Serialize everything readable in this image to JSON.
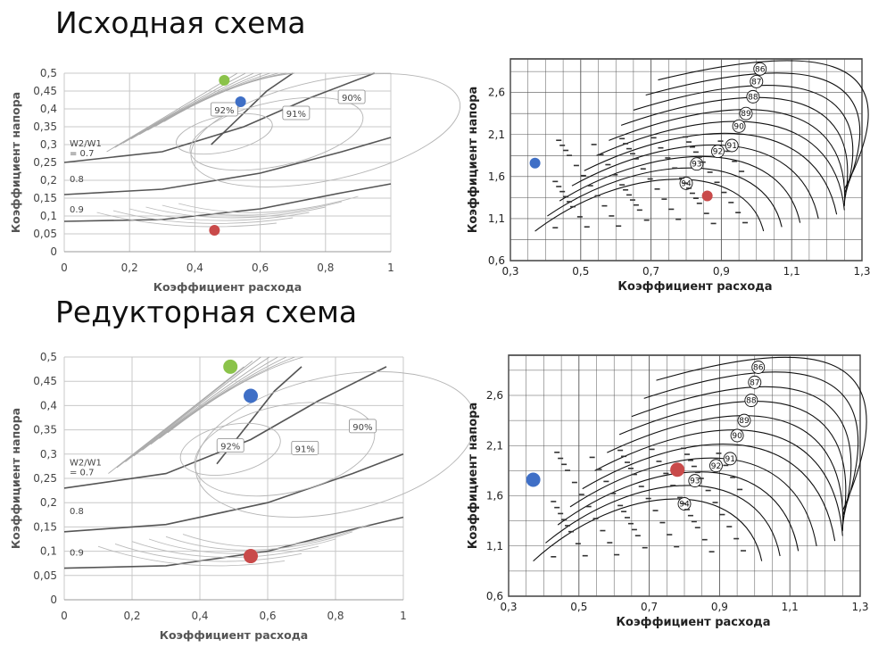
{
  "titles": {
    "top": "Исходная схема",
    "bottom": "Редукторная схема"
  },
  "colors": {
    "green_point": "#8bc34a",
    "blue_point": "#3f6fc6",
    "red_point": "#c94a4a"
  },
  "chart_data": [
    {
      "type": "scatter",
      "title": "",
      "xlabel": "Коэффициент расхода",
      "ylabel": "Коэффициент напора",
      "xlim": [
        0,
        1
      ],
      "ylim": [
        0,
        0.5
      ],
      "xticks": [
        "0",
        "0,2",
        "0,4",
        "0,6",
        "0,8",
        "1"
      ],
      "yticks": [
        "0",
        "0,05",
        "0,1",
        "0,15",
        "0,2",
        "0,25",
        "0,3",
        "0,35",
        "0,4",
        "0,45",
        "0,5"
      ],
      "grid": true,
      "annotations": [
        "92%",
        "91%",
        "90%",
        "W2/W1",
        "= 0.7",
        "0.8",
        "0.9"
      ],
      "efficiency_labels": [
        {
          "text": "92%",
          "x": 0.49,
          "y": 0.395
        },
        {
          "text": "91%",
          "x": 0.71,
          "y": 0.385
        },
        {
          "text": "90%",
          "x": 0.88,
          "y": 0.43
        }
      ],
      "points": [
        {
          "x": 0.49,
          "y": 0.48,
          "color": "#8bc34a"
        },
        {
          "x": 0.54,
          "y": 0.42,
          "color": "#3f6fc6"
        },
        {
          "x": 0.46,
          "y": 0.06,
          "color": "#c94a4a"
        }
      ]
    },
    {
      "type": "scatter",
      "title": "",
      "xlabel": "Коэффициент расхода",
      "ylabel": "Коэффициент напора",
      "xlim": [
        0.3,
        1.3
      ],
      "ylim": [
        0.6,
        3.0
      ],
      "xticks": [
        "0,3",
        "0,5",
        "0,7",
        "0,9",
        "1,1",
        "1,3"
      ],
      "yticks": [
        "0,6",
        "1,1",
        "1,6",
        "2,1",
        "2,6"
      ],
      "grid": true,
      "contour_labels": [
        "86",
        "87",
        "88",
        "89",
        "90",
        "91",
        "92",
        "93",
        "94"
      ],
      "points": [
        {
          "x": 0.37,
          "y": 1.76,
          "color": "#3f6fc6"
        },
        {
          "x": 0.86,
          "y": 1.37,
          "color": "#c94a4a"
        }
      ]
    },
    {
      "type": "scatter",
      "title": "",
      "xlabel": "Коэффициент расхода",
      "ylabel": "Коэффициент напора",
      "xlim": [
        0,
        1
      ],
      "ylim": [
        0,
        0.5
      ],
      "xticks": [
        "0",
        "0,2",
        "0,4",
        "0,6",
        "0,8",
        "1"
      ],
      "yticks": [
        "0",
        "0,05",
        "0,1",
        "0,15",
        "0,2",
        "0,25",
        "0,3",
        "0,35",
        "0,4",
        "0,45",
        "0,5"
      ],
      "grid": true,
      "annotations": [
        "92%",
        "91%",
        "90%",
        "W2/W1",
        "= 0.7",
        "0.8",
        "0.9"
      ],
      "efficiency_labels": [
        {
          "text": "92%",
          "x": 0.49,
          "y": 0.315
        },
        {
          "text": "91%",
          "x": 0.71,
          "y": 0.31
        },
        {
          "text": "90%",
          "x": 0.88,
          "y": 0.355
        }
      ],
      "points": [
        {
          "x": 0.49,
          "y": 0.48,
          "color": "#8bc34a"
        },
        {
          "x": 0.55,
          "y": 0.42,
          "color": "#3f6fc6"
        },
        {
          "x": 0.55,
          "y": 0.09,
          "color": "#c94a4a"
        }
      ]
    },
    {
      "type": "scatter",
      "title": "",
      "xlabel": "Коэффициент расхода",
      "ylabel": "Коэффициент напора",
      "xlim": [
        0.3,
        1.3
      ],
      "ylim": [
        0.6,
        3.0
      ],
      "xticks": [
        "0,3",
        "0,5",
        "0,7",
        "0,9",
        "1,1",
        "1,3"
      ],
      "yticks": [
        "0,6",
        "1,1",
        "1,6",
        "2,1",
        "2,6"
      ],
      "grid": true,
      "contour_labels": [
        "86",
        "87",
        "88",
        "89",
        "90",
        "91",
        "92",
        "93",
        "94"
      ],
      "points": [
        {
          "x": 0.37,
          "y": 1.76,
          "color": "#3f6fc6"
        },
        {
          "x": 0.78,
          "y": 1.86,
          "color": "#c94a4a"
        }
      ]
    }
  ]
}
